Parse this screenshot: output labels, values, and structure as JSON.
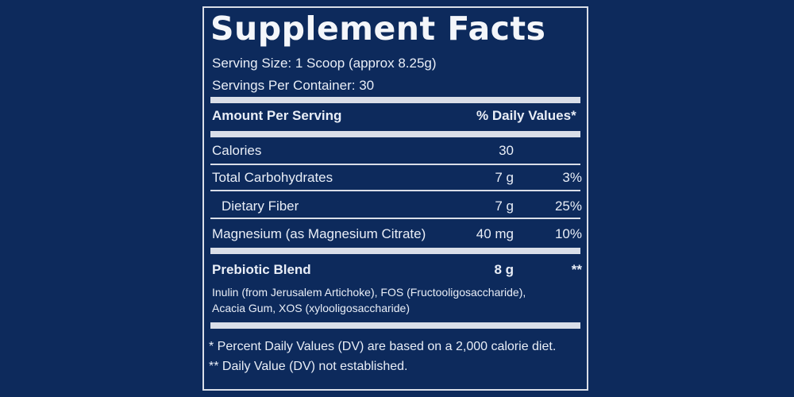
{
  "label": {
    "title": "Supplement Facts",
    "serving_size": "Serving Size: 1 Scoop (approx 8.25g)",
    "servings_per_container": "Servings Per Container: 30",
    "header_amount": "Amount Per Serving",
    "header_dv": "% Daily Values*",
    "rows": [
      {
        "name": "Calories",
        "amount": "30",
        "dv": ""
      },
      {
        "name": "Total Carbohydrates",
        "amount": "7 g",
        "dv": "3%"
      },
      {
        "name": "Dietary Fiber",
        "amount": "7 g",
        "dv": "25%"
      },
      {
        "name": "Magnesium (as Magnesium Citrate)",
        "amount": "40 mg",
        "dv": "10%"
      }
    ],
    "blend": {
      "name": "Prebiotic Blend",
      "amount": "8 g",
      "dv": "**",
      "ingredients_line1": "Inulin (from Jerusalem Artichoke), FOS (Fructooligosaccharide),",
      "ingredients_line2": "Acacia Gum, XOS (xylooligosaccharide)"
    },
    "footnote1": "* Percent Daily Values (DV) are based on a 2,000 calorie diet.",
    "footnote2": "** Daily Value (DV) not established."
  }
}
